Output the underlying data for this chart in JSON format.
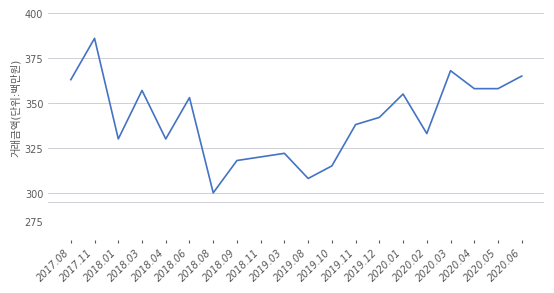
{
  "x_labels": [
    "2017.08",
    "2017.11",
    "2018.01",
    "2018.03",
    "2018.04",
    "2018.06",
    "2018.08",
    "2018.09",
    "2018.11",
    "2019.03",
    "2019.08",
    "2019.10",
    "2019.11",
    "2019.12",
    "2020.01",
    "2020.02",
    "2020.03",
    "2020.04",
    "2020.05",
    "2020.06"
  ],
  "values": [
    363,
    386,
    330,
    357,
    330,
    353,
    300,
    318,
    320,
    322,
    308,
    315,
    338,
    342,
    355,
    333,
    368,
    358,
    358,
    365
  ],
  "ylabel": "거래금액(단위:백만원)",
  "ylim_main_min": 295,
  "ylim_main_max": 400,
  "yticks_main": [
    300,
    325,
    350,
    375,
    400
  ],
  "ytick_below": 275,
  "line_color": "#4472c4",
  "bg_color": "#ffffff",
  "grid_color": "#c8c8d0",
  "tick_label_color": "#595959",
  "tick_fontsize": 7.0,
  "ylabel_fontsize": 7.5,
  "ylabel_color": "#595959"
}
